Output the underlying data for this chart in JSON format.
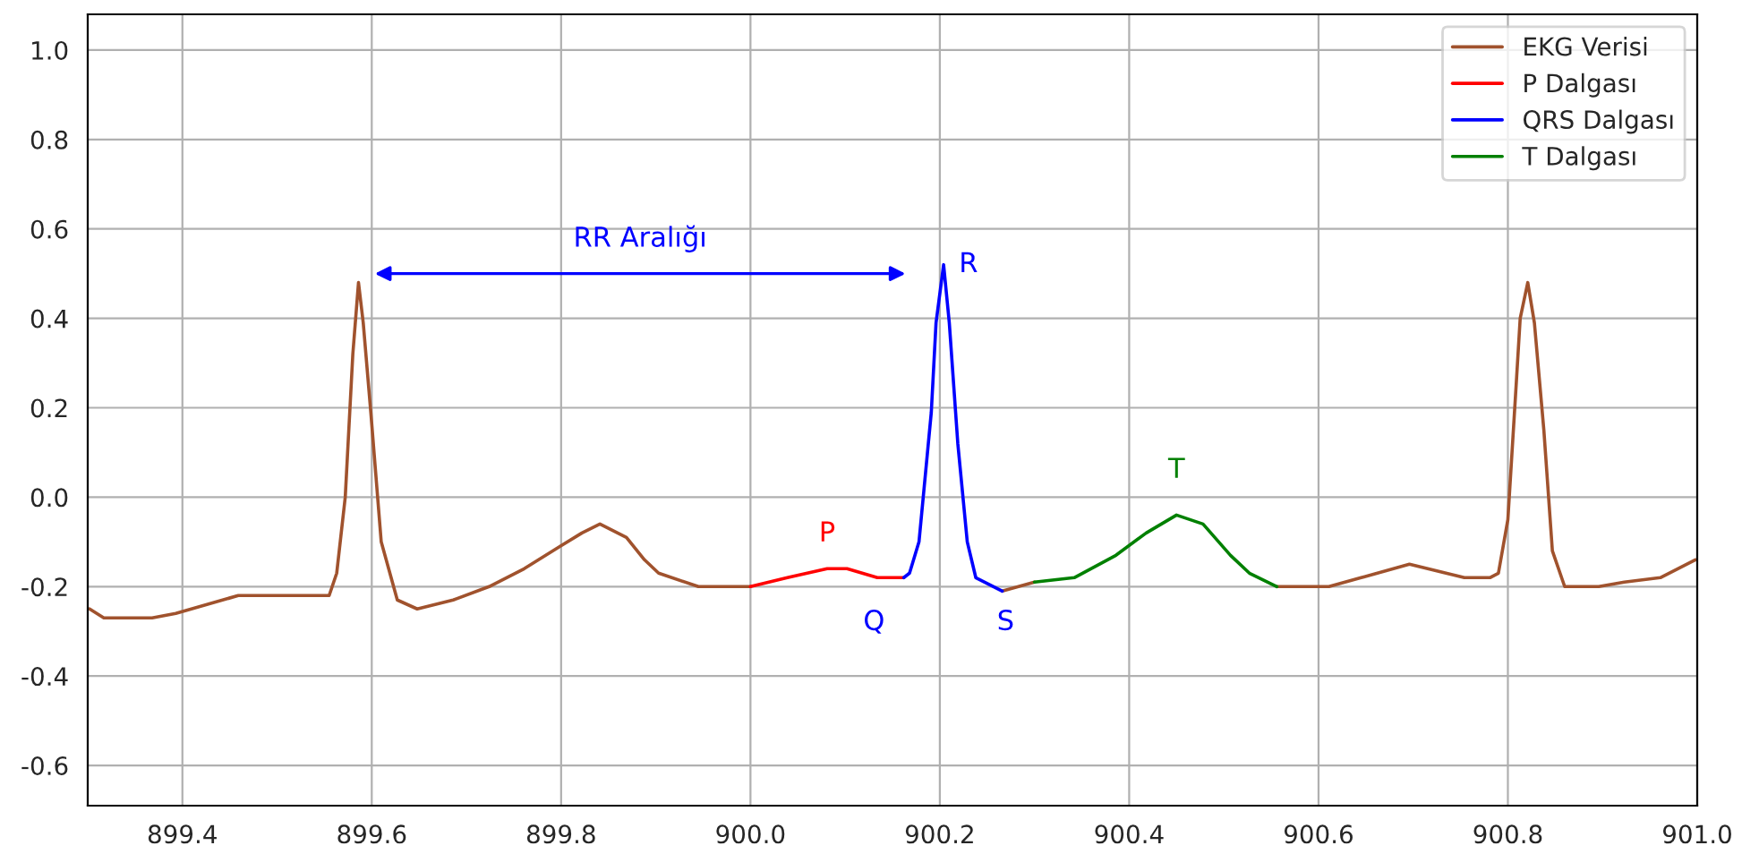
{
  "chart_data": {
    "type": "line",
    "series": [
      {
        "name": "EKG Verisi",
        "color": "#a0522d",
        "x": [
          899.302,
          899.317,
          899.368,
          899.393,
          899.459,
          899.485,
          899.542,
          899.555,
          899.563,
          899.572,
          899.58,
          899.586,
          899.591,
          899.599,
          899.61,
          899.627,
          899.648,
          899.686,
          899.724,
          899.761,
          899.799,
          899.822,
          899.841,
          899.869,
          899.888,
          899.903,
          899.945,
          900.0,
          900.1,
          900.266,
          900.3,
          900.4,
          900.556,
          900.611,
          900.645,
          900.696,
          900.754,
          900.781,
          900.79,
          900.8,
          900.809,
          900.813,
          900.821,
          900.828,
          900.838,
          900.847,
          900.86,
          900.877,
          900.896,
          900.923,
          900.961,
          900.998
        ],
        "values": [
          -0.25,
          -0.27,
          -0.27,
          -0.26,
          -0.22,
          -0.22,
          -0.22,
          -0.22,
          -0.17,
          0.0,
          0.32,
          0.48,
          0.39,
          0.19,
          -0.1,
          -0.23,
          -0.25,
          -0.23,
          -0.2,
          -0.16,
          -0.11,
          -0.08,
          -0.06,
          -0.09,
          -0.14,
          -0.17,
          -0.2,
          -0.2,
          null,
          -0.21,
          -0.19,
          null,
          -0.2,
          -0.2,
          -0.18,
          -0.15,
          -0.18,
          -0.18,
          -0.17,
          -0.05,
          0.26,
          0.4,
          0.48,
          0.39,
          0.15,
          -0.12,
          -0.2,
          -0.2,
          -0.2,
          -0.19,
          -0.18,
          -0.14
        ]
      },
      {
        "name": "P Dalgası",
        "color": "#ff0000",
        "x": [
          900.0,
          900.039,
          900.081,
          900.102,
          900.134,
          900.162
        ],
        "values": [
          -0.2,
          -0.18,
          -0.16,
          -0.16,
          -0.18,
          -0.18
        ]
      },
      {
        "name": "QRS Dalgası",
        "color": "#0000ff",
        "x": [
          900.162,
          900.168,
          900.178,
          900.191,
          900.196,
          900.204,
          900.21,
          900.219,
          900.229,
          900.238,
          900.266
        ],
        "values": [
          -0.18,
          -0.17,
          -0.1,
          0.19,
          0.39,
          0.52,
          0.39,
          0.12,
          -0.1,
          -0.18,
          -0.21
        ]
      },
      {
        "name": "T Dalgası",
        "color": "#008000",
        "x": [
          900.3,
          900.342,
          900.386,
          900.418,
          900.45,
          900.478,
          900.507,
          900.527,
          900.556
        ],
        "values": [
          -0.19,
          -0.18,
          -0.13,
          -0.08,
          -0.04,
          -0.06,
          -0.13,
          -0.17,
          -0.2
        ]
      }
    ],
    "annotations": [
      "RR Aralığı",
      {
        "text": "P",
        "x": 900.081,
        "y": -0.16
      },
      {
        "text": "Q",
        "x": 900.162,
        "y": -0.18
      },
      {
        "text": "R",
        "x": 900.204,
        "y": 0.52
      },
      {
        "text": "S",
        "x": 900.238,
        "y": -0.18
      },
      {
        "text": "T",
        "x": 900.45,
        "y": -0.04
      }
    ],
    "xlim": [
      899.3,
      901.0
    ],
    "xticks": [
      899.4,
      899.6,
      899.8,
      {
        "value": 900,
        "label": "900.0"
      },
      900.2,
      900.4,
      900.6,
      900.8,
      {
        "value": 901,
        "label": "901.0"
      }
    ],
    "ylim": [
      -0.69,
      1.08
    ],
    "yticks": [
      -0.6,
      -0.4,
      -0.2,
      {
        "value": 0,
        "label": "0.0"
      },
      0.2,
      0.4,
      0.6,
      0.8,
      {
        "value": 1,
        "label": "1.0"
      }
    ],
    "grid": true,
    "legend": "top right",
    "line_style": "solid",
    "marker": "none"
  }
}
